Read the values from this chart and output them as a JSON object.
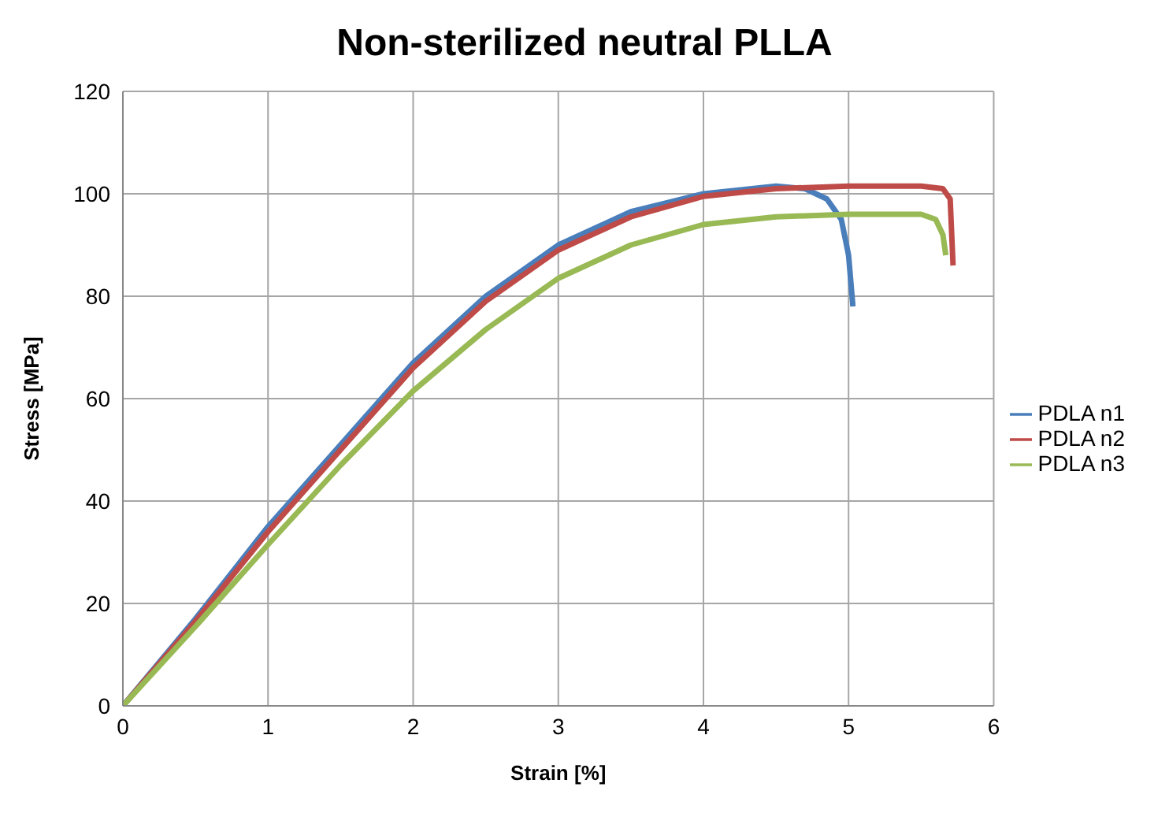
{
  "chart_data": {
    "type": "line",
    "title": "Non-sterilized neutral PLLA",
    "xlabel": "Strain [%]",
    "ylabel": "Stress [MPa]",
    "xlim": [
      0,
      6
    ],
    "xticks": [
      0,
      1,
      2,
      3,
      4,
      5,
      6
    ],
    "ylim": [
      0,
      120
    ],
    "yticks": [
      0,
      20,
      40,
      60,
      80,
      100,
      120
    ],
    "grid": true,
    "legend": "right",
    "marker": "none",
    "series": [
      {
        "name": "PDLA n1",
        "color": "#4a7ebb",
        "x": [
          0,
          0.5,
          1,
          1.5,
          2,
          2.5,
          3,
          3.5,
          4,
          4.5,
          4.7,
          4.85,
          4.95,
          5.0,
          5.03
        ],
        "values": [
          0,
          17,
          35,
          51,
          67,
          80,
          90,
          96.5,
          100,
          101.5,
          101,
          99,
          95,
          88,
          78
        ]
      },
      {
        "name": "PDLA n2",
        "color": "#be4b48",
        "x": [
          0,
          0.5,
          1,
          1.5,
          2,
          2.5,
          3,
          3.5,
          4,
          4.5,
          5,
          5.5,
          5.65,
          5.7,
          5.72
        ],
        "values": [
          0,
          16.5,
          34,
          50,
          66,
          79,
          89,
          95.5,
          99.5,
          101,
          101.5,
          101.5,
          101,
          99,
          86
        ]
      },
      {
        "name": "PDLA n3",
        "color": "#98b954",
        "x": [
          0,
          0.5,
          1,
          1.5,
          2,
          2.5,
          3,
          3.5,
          4,
          4.5,
          5,
          5.5,
          5.6,
          5.65,
          5.67
        ],
        "values": [
          0,
          15.5,
          31.5,
          47,
          61.5,
          73.5,
          83.5,
          90,
          94,
          95.5,
          96,
          96,
          95,
          92,
          88
        ]
      }
    ]
  }
}
